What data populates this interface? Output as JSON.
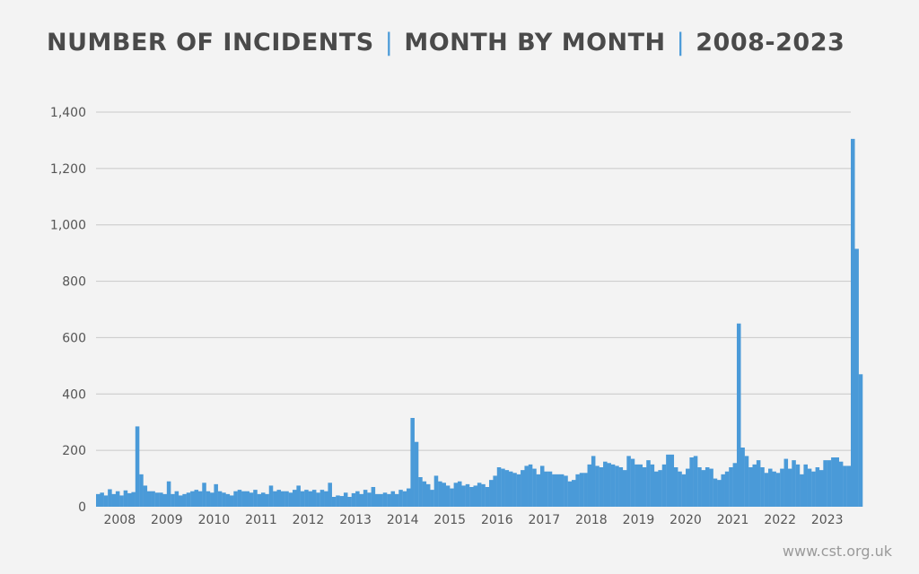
{
  "title_parts": [
    "NUMBER OF INCIDENTS",
    "MONTH BY MONTH",
    "2008-2023"
  ],
  "title_separator": "|",
  "footer": "www.cst.org.uk",
  "colors": {
    "bar": "#4a9ad8",
    "separator": "#4a9ad8",
    "grid": "#c8c8c8",
    "text": "#555555"
  },
  "chart_data": {
    "type": "bar",
    "title": "NUMBER OF INCIDENTS | MONTH BY MONTH | 2008-2023",
    "xlabel": "",
    "ylabel": "",
    "ylim": [
      0,
      1400
    ],
    "y_ticks": [
      0,
      200,
      400,
      600,
      800,
      1000,
      1200,
      1400
    ],
    "y_tick_labels": [
      "0",
      "200",
      "400",
      "600",
      "800",
      "1,000",
      "1,200",
      "1,400"
    ],
    "x_tick_labels": [
      "2008",
      "2009",
      "2010",
      "2011",
      "2012",
      "2013",
      "2014",
      "2015",
      "2016",
      "2017",
      "2018",
      "2019",
      "2020",
      "2021",
      "2022",
      "2023"
    ],
    "grid": true,
    "legend": "none",
    "series": [
      {
        "values": [
          45,
          50,
          40,
          62,
          45,
          55,
          40,
          58,
          48,
          52,
          285,
          115,
          75,
          55,
          55,
          50,
          50,
          45,
          90,
          45,
          55,
          40,
          45,
          50,
          55,
          60,
          55,
          85,
          55,
          50,
          80,
          55,
          50,
          45,
          40,
          55,
          60,
          55,
          55,
          50,
          60,
          45,
          50,
          45,
          75,
          55,
          60,
          55,
          55,
          50,
          60,
          75,
          55,
          60,
          55,
          60,
          50,
          60,
          55,
          85,
          35,
          40,
          38,
          50,
          35,
          48,
          55,
          45,
          60,
          50,
          70,
          45,
          45,
          50,
          45,
          55,
          45,
          60,
          55,
          65,
          315,
          230,
          105,
          90,
          80,
          60,
          110,
          90,
          85,
          75,
          65,
          85,
          90,
          75,
          80,
          70,
          75,
          85,
          80,
          70,
          95,
          110,
          140,
          135,
          130,
          125,
          120,
          115,
          130,
          145,
          150,
          135,
          115,
          145,
          125,
          125,
          115,
          115,
          115,
          110,
          90,
          95,
          115,
          120,
          120,
          150,
          180,
          145,
          140,
          160,
          155,
          150,
          145,
          140,
          130,
          180,
          170,
          150,
          150,
          140,
          165,
          150,
          125,
          130,
          150,
          185,
          185,
          140,
          125,
          115,
          135,
          175,
          180,
          140,
          130,
          140,
          135,
          100,
          95,
          115,
          125,
          140,
          155,
          650,
          210,
          180,
          140,
          150,
          165,
          140,
          120,
          135,
          125,
          120,
          135,
          170,
          135,
          165,
          150,
          115,
          150,
          135,
          125,
          140,
          130,
          165,
          165,
          175,
          175,
          160,
          145,
          145,
          1305,
          915,
          470
        ]
      }
    ]
  }
}
